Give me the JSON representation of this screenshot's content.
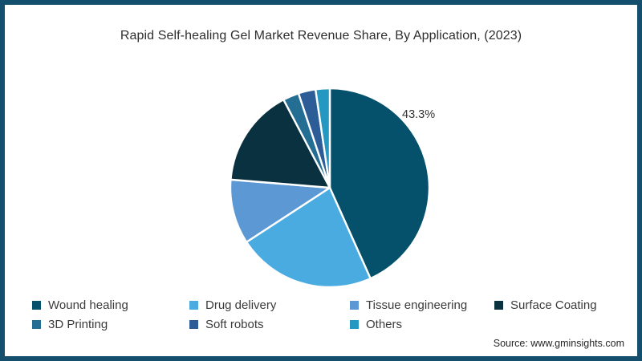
{
  "page": {
    "source": "Source: www.gminsights.com",
    "border_color": "#14506e",
    "background": "#ffffff"
  },
  "chart_data": {
    "type": "pie",
    "title": "Rapid Self-healing Gel Market Revenue Share, By Application, (2023)",
    "unit": "%",
    "start_angle_deg": 0,
    "direction": "clockwise",
    "annotation": {
      "text": "43.3%",
      "applies_to": "Wound healing",
      "position": "upper-right outside pie"
    },
    "legend_position": "bottom, two rows, four columns",
    "slices": [
      {
        "label": "Wound healing",
        "value": 43.3,
        "color": "#05506b"
      },
      {
        "label": "Drug delivery",
        "value": 22.5,
        "color": "#4aabe1"
      },
      {
        "label": "Tissue engineering",
        "value": 10.5,
        "color": "#5b98d4"
      },
      {
        "label": "Surface Coating",
        "value": 16.0,
        "color": "#0a3140"
      },
      {
        "label": "3D Printing",
        "value": 2.6,
        "color": "#246e93"
      },
      {
        "label": "Soft robots",
        "value": 2.8,
        "color": "#2c5d96"
      },
      {
        "label": "Others",
        "value": 2.3,
        "color": "#2598c2"
      }
    ]
  }
}
